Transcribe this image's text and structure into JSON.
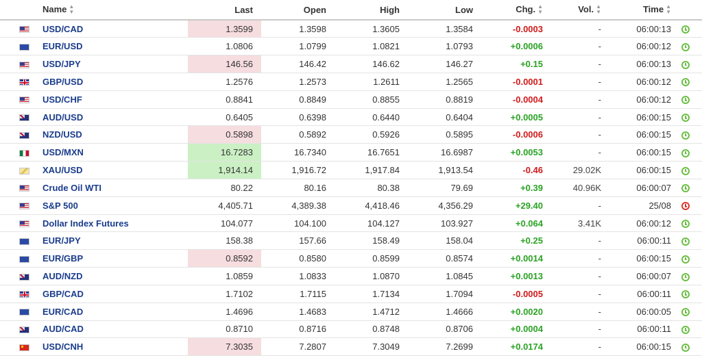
{
  "columns": {
    "name": "Name",
    "last": "Last",
    "open": "Open",
    "high": "High",
    "low": "Low",
    "chg": "Chg.",
    "vol": "Vol.",
    "time": "Time"
  },
  "sort_icon": "sort-arrows-icon",
  "colors": {
    "link": "#1a3c8c",
    "positive": "#2aa324",
    "negative": "#d01a1a",
    "highlight_down": "#f6dde0",
    "highlight_up": "#cbf0c4",
    "clock_open": "#6cbe45",
    "clock_closed": "#e0342c"
  },
  "rows": [
    {
      "flag": "us",
      "name": "USD/CAD",
      "last": "1.3599",
      "open": "1.3598",
      "high": "1.3605",
      "low": "1.3584",
      "chg": "-0.0003",
      "dir": "neg",
      "vol": "-",
      "time": "06:00:13",
      "highlight": "down",
      "clock": "open"
    },
    {
      "flag": "eu",
      "name": "EUR/USD",
      "last": "1.0806",
      "open": "1.0799",
      "high": "1.0821",
      "low": "1.0793",
      "chg": "+0.0006",
      "dir": "pos",
      "vol": "-",
      "time": "06:00:12",
      "highlight": "",
      "clock": "open"
    },
    {
      "flag": "us",
      "name": "USD/JPY",
      "last": "146.56",
      "open": "146.42",
      "high": "146.62",
      "low": "146.27",
      "chg": "+0.15",
      "dir": "pos",
      "vol": "-",
      "time": "06:00:13",
      "highlight": "down",
      "clock": "open"
    },
    {
      "flag": "uk",
      "name": "GBP/USD",
      "last": "1.2576",
      "open": "1.2573",
      "high": "1.2611",
      "low": "1.2565",
      "chg": "-0.0001",
      "dir": "neg",
      "vol": "-",
      "time": "06:00:12",
      "highlight": "",
      "clock": "open"
    },
    {
      "flag": "us",
      "name": "USD/CHF",
      "last": "0.8841",
      "open": "0.8849",
      "high": "0.8855",
      "low": "0.8819",
      "chg": "-0.0004",
      "dir": "neg",
      "vol": "-",
      "time": "06:00:12",
      "highlight": "",
      "clock": "open"
    },
    {
      "flag": "au",
      "name": "AUD/USD",
      "last": "0.6405",
      "open": "0.6398",
      "high": "0.6440",
      "low": "0.6404",
      "chg": "+0.0005",
      "dir": "pos",
      "vol": "-",
      "time": "06:00:15",
      "highlight": "",
      "clock": "open"
    },
    {
      "flag": "au",
      "name": "NZD/USD",
      "last": "0.5898",
      "open": "0.5892",
      "high": "0.5926",
      "low": "0.5895",
      "chg": "-0.0006",
      "dir": "neg",
      "vol": "-",
      "time": "06:00:15",
      "highlight": "down",
      "clock": "open"
    },
    {
      "flag": "mx",
      "name": "USD/MXN",
      "last": "16.7283",
      "open": "16.7340",
      "high": "16.7651",
      "low": "16.6987",
      "chg": "+0.0053",
      "dir": "pos",
      "vol": "-",
      "time": "06:00:15",
      "highlight": "up",
      "clock": "open"
    },
    {
      "flag": "gold",
      "name": "XAU/USD",
      "last": "1,914.14",
      "open": "1,916.72",
      "high": "1,917.84",
      "low": "1,913.54",
      "chg": "-0.46",
      "dir": "neg",
      "vol": "29.02K",
      "time": "06:00:15",
      "highlight": "up",
      "clock": "open"
    },
    {
      "flag": "us",
      "name": "Crude Oil WTI",
      "last": "80.22",
      "open": "80.16",
      "high": "80.38",
      "low": "79.69",
      "chg": "+0.39",
      "dir": "pos",
      "vol": "40.96K",
      "time": "06:00:07",
      "highlight": "",
      "clock": "open"
    },
    {
      "flag": "us",
      "name": "S&P 500",
      "last": "4,405.71",
      "open": "4,389.38",
      "high": "4,418.46",
      "low": "4,356.29",
      "chg": "+29.40",
      "dir": "pos",
      "vol": "-",
      "time": "25/08",
      "highlight": "",
      "clock": "closed"
    },
    {
      "flag": "us",
      "name": "Dollar Index Futures",
      "last": "104.077",
      "open": "104.100",
      "high": "104.127",
      "low": "103.927",
      "chg": "+0.064",
      "dir": "pos",
      "vol": "3.41K",
      "time": "06:00:12",
      "highlight": "",
      "clock": "open"
    },
    {
      "flag": "eu",
      "name": "EUR/JPY",
      "last": "158.38",
      "open": "157.66",
      "high": "158.49",
      "low": "158.04",
      "chg": "+0.25",
      "dir": "pos",
      "vol": "-",
      "time": "06:00:11",
      "highlight": "",
      "clock": "open"
    },
    {
      "flag": "eu",
      "name": "EUR/GBP",
      "last": "0.8592",
      "open": "0.8580",
      "high": "0.8599",
      "low": "0.8574",
      "chg": "+0.0014",
      "dir": "pos",
      "vol": "-",
      "time": "06:00:15",
      "highlight": "down",
      "clock": "open"
    },
    {
      "flag": "au",
      "name": "AUD/NZD",
      "last": "1.0859",
      "open": "1.0833",
      "high": "1.0870",
      "low": "1.0845",
      "chg": "+0.0013",
      "dir": "pos",
      "vol": "-",
      "time": "06:00:07",
      "highlight": "",
      "clock": "open"
    },
    {
      "flag": "uk",
      "name": "GBP/CAD",
      "last": "1.7102",
      "open": "1.7115",
      "high": "1.7134",
      "low": "1.7094",
      "chg": "-0.0005",
      "dir": "neg",
      "vol": "-",
      "time": "06:00:11",
      "highlight": "",
      "clock": "open"
    },
    {
      "flag": "eu",
      "name": "EUR/CAD",
      "last": "1.4696",
      "open": "1.4683",
      "high": "1.4712",
      "low": "1.4666",
      "chg": "+0.0020",
      "dir": "pos",
      "vol": "-",
      "time": "06:00:05",
      "highlight": "",
      "clock": "open"
    },
    {
      "flag": "au",
      "name": "AUD/CAD",
      "last": "0.8710",
      "open": "0.8716",
      "high": "0.8748",
      "low": "0.8706",
      "chg": "+0.0004",
      "dir": "pos",
      "vol": "-",
      "time": "06:00:11",
      "highlight": "",
      "clock": "open"
    },
    {
      "flag": "cn",
      "name": "USD/CNH",
      "last": "7.3035",
      "open": "7.2807",
      "high": "7.3049",
      "low": "7.2699",
      "chg": "+0.0174",
      "dir": "pos",
      "vol": "-",
      "time": "06:00:15",
      "highlight": "down",
      "clock": "open"
    }
  ]
}
